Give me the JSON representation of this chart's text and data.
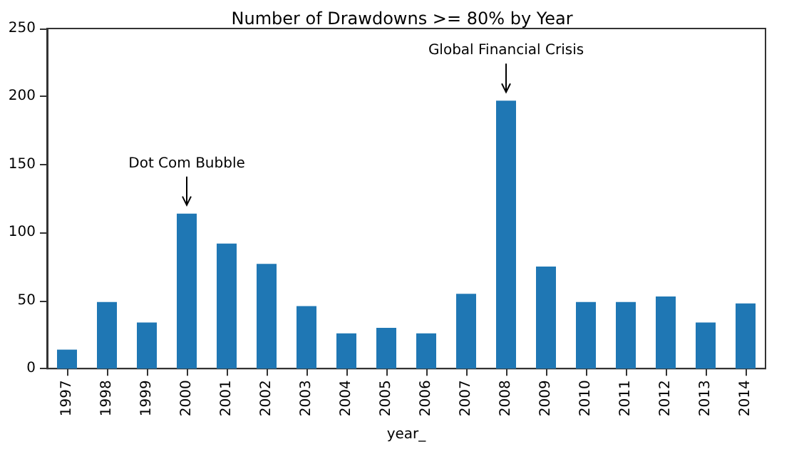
{
  "chart_data": {
    "type": "bar",
    "title": "Number of Drawdowns >= 80% by Year",
    "xlabel": "year_",
    "categories": [
      "1997",
      "1998",
      "1999",
      "2000",
      "2001",
      "2002",
      "2003",
      "2004",
      "2005",
      "2006",
      "2007",
      "2008",
      "2009",
      "2010",
      "2011",
      "2012",
      "2013",
      "2014"
    ],
    "values": [
      14,
      49,
      34,
      114,
      92,
      77,
      46,
      26,
      30,
      26,
      55,
      197,
      75,
      49,
      49,
      53,
      34,
      48
    ],
    "color": "#1f77b4",
    "ylim": [
      0,
      250
    ],
    "yticks": [
      0,
      50,
      100,
      150,
      200,
      250
    ],
    "grid": false,
    "annotations": [
      {
        "text": "Dot Com Bubble",
        "x": "2000",
        "y": 114
      },
      {
        "text": "Global Financial Crisis",
        "x": "2008",
        "y": 197
      }
    ]
  }
}
